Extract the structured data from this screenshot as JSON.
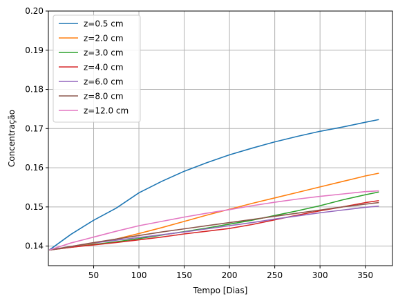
{
  "chart_data": {
    "type": "line",
    "title": "",
    "xlabel": "Tempo [Dias]",
    "ylabel": "Concentração",
    "xlim": [
      0,
      380
    ],
    "ylim": [
      0.135,
      0.2
    ],
    "x_ticks": [
      50,
      100,
      150,
      200,
      250,
      300,
      350
    ],
    "y_ticks": [
      0.14,
      0.15,
      0.16,
      0.17,
      0.18,
      0.19,
      0.2
    ],
    "x_tick_labels": [
      "50",
      "100",
      "150",
      "200",
      "250",
      "300",
      "350"
    ],
    "y_tick_labels": [
      "0.14",
      "0.15",
      "0.16",
      "0.17",
      "0.18",
      "0.19",
      "0.20"
    ],
    "grid": true,
    "legend_position": "top-left",
    "x": [
      1,
      25,
      50,
      75,
      100,
      125,
      150,
      175,
      200,
      225,
      250,
      275,
      300,
      325,
      350,
      365
    ],
    "series": [
      {
        "name": "z=0.5 cm",
        "color": "#1f77b4",
        "values": [
          0.139,
          0.143,
          0.1466,
          0.1497,
          0.1536,
          0.1565,
          0.1591,
          0.1613,
          0.1633,
          0.165,
          0.1666,
          0.168,
          0.1693,
          0.1704,
          0.1716,
          0.1723
        ]
      },
      {
        "name": "z=2.0 cm",
        "color": "#ff7f0e",
        "values": [
          0.139,
          0.1398,
          0.1407,
          0.1418,
          0.1432,
          0.1447,
          0.1463,
          0.1479,
          0.1494,
          0.1509,
          0.1523,
          0.1537,
          0.1551,
          0.1565,
          0.1579,
          0.1586
        ]
      },
      {
        "name": "z=3.0 cm",
        "color": "#2ca02c",
        "values": [
          0.139,
          0.1397,
          0.1404,
          0.1411,
          0.1419,
          0.1428,
          0.1437,
          0.1446,
          0.1456,
          0.1466,
          0.1478,
          0.149,
          0.1503,
          0.1518,
          0.1531,
          0.1538
        ]
      },
      {
        "name": "z=4.0 cm",
        "color": "#d62728",
        "values": [
          0.139,
          0.1397,
          0.1403,
          0.1409,
          0.1416,
          0.1423,
          0.1431,
          0.1438,
          0.1445,
          0.1455,
          0.1467,
          0.1479,
          0.149,
          0.15,
          0.1511,
          0.1516
        ]
      },
      {
        "name": "z=6.0 cm",
        "color": "#9467bd",
        "values": [
          0.139,
          0.1399,
          0.1408,
          0.1415,
          0.1422,
          0.1429,
          0.1436,
          0.1444,
          0.1452,
          0.146,
          0.1469,
          0.1477,
          0.1485,
          0.1492,
          0.1499,
          0.1502
        ]
      },
      {
        "name": "z=8.0 cm",
        "color": "#8c564b",
        "values": [
          0.139,
          0.1399,
          0.1409,
          0.1418,
          0.1427,
          0.1436,
          0.1444,
          0.1452,
          0.146,
          0.1468,
          0.1476,
          0.1484,
          0.1492,
          0.15,
          0.1507,
          0.1511
        ]
      },
      {
        "name": "z=12.0 cm",
        "color": "#e377c2",
        "values": [
          0.139,
          0.1408,
          0.1423,
          0.1438,
          0.1452,
          0.1463,
          0.1474,
          0.1484,
          0.1493,
          0.1503,
          0.1512,
          0.152,
          0.1527,
          0.1533,
          0.1539,
          0.1541
        ]
      }
    ]
  }
}
